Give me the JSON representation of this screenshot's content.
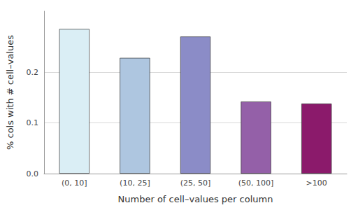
{
  "chart_data": {
    "type": "bar",
    "categories": [
      "(0, 10]",
      "(10, 25]",
      "(25, 50]",
      "(50, 100]",
      ">100"
    ],
    "values": [
      0.285,
      0.228,
      0.27,
      0.142,
      0.138
    ],
    "colors": [
      "#daeef5",
      "#aec6e0",
      "#8b8cc7",
      "#9460a8",
      "#8b1a6b"
    ],
    "xlabel": "Number of cell–values per column",
    "ylabel": "% cols with # cell–values",
    "ylim": [
      0,
      0.32
    ],
    "yticks": [
      {
        "value": 0,
        "label": "0.0"
      },
      0.1,
      0.2
    ],
    "grid": true
  }
}
